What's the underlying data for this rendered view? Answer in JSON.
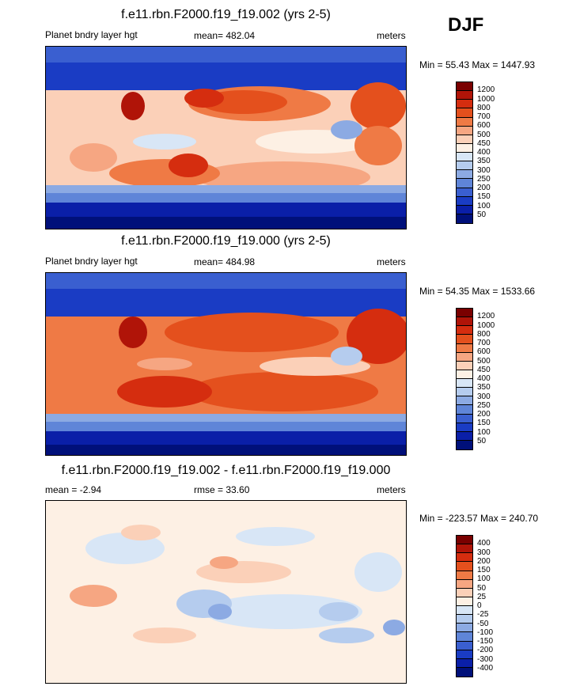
{
  "season": "DJF",
  "panels": [
    {
      "title": "f.e11.rbn.F2000.f19_f19.002 (yrs 2-5)",
      "left_label": "Planet bndry layer hgt",
      "center_label": "mean= 482.04",
      "right_label": "meters",
      "minmax": "Min =  55.43 Max = 1447.93",
      "colorbar": {
        "labels": [
          "1200",
          "1000",
          "800",
          "700",
          "600",
          "500",
          "450",
          "400",
          "350",
          "300",
          "250",
          "200",
          "150",
          "100",
          "50"
        ],
        "colors": [
          "#7a0000",
          "#b01408",
          "#d52d0f",
          "#e4501d",
          "#ef7a45",
          "#f6a682",
          "#fbd0b8",
          "#fdf0e4",
          "#d8e6f6",
          "#b5ccee",
          "#8caae3",
          "#5f85d8",
          "#3a5fd0",
          "#1a3cc4",
          "#0a1fa8",
          "#00107a"
        ]
      }
    },
    {
      "title": "f.e11.rbn.F2000.f19_f19.000 (yrs 2-5)",
      "left_label": "Planet bndry layer hgt",
      "center_label": "mean= 484.98",
      "right_label": "meters",
      "minmax": "Min =  54.35 Max = 1533.66",
      "colorbar": {
        "labels": [
          "1200",
          "1000",
          "800",
          "700",
          "600",
          "500",
          "450",
          "400",
          "350",
          "300",
          "250",
          "200",
          "150",
          "100",
          "50"
        ],
        "colors": [
          "#7a0000",
          "#b01408",
          "#d52d0f",
          "#e4501d",
          "#ef7a45",
          "#f6a682",
          "#fbd0b8",
          "#fdf0e4",
          "#d8e6f6",
          "#b5ccee",
          "#8caae3",
          "#5f85d8",
          "#3a5fd0",
          "#1a3cc4",
          "#0a1fa8",
          "#00107a"
        ]
      }
    },
    {
      "title": "f.e11.rbn.F2000.f19_f19.002 - f.e11.rbn.F2000.f19_f19.000",
      "left_label": "mean =  -2.94",
      "center_label": "rmse =  33.60",
      "right_label": "meters",
      "minmax": "Min = -223.57 Max = 240.70",
      "colorbar": {
        "labels": [
          "400",
          "300",
          "200",
          "150",
          "100",
          "50",
          "25",
          "0",
          "-25",
          "-50",
          "-100",
          "-150",
          "-200",
          "-300",
          "-400"
        ],
        "colors": [
          "#7a0000",
          "#b01408",
          "#d52d0f",
          "#e4501d",
          "#ef7a45",
          "#f6a682",
          "#fbd0b8",
          "#fdf0e4",
          "#d8e6f6",
          "#b5ccee",
          "#8caae3",
          "#5f85d8",
          "#3a5fd0",
          "#1a3cc4",
          "#0a1fa8",
          "#00107a"
        ]
      }
    }
  ]
}
